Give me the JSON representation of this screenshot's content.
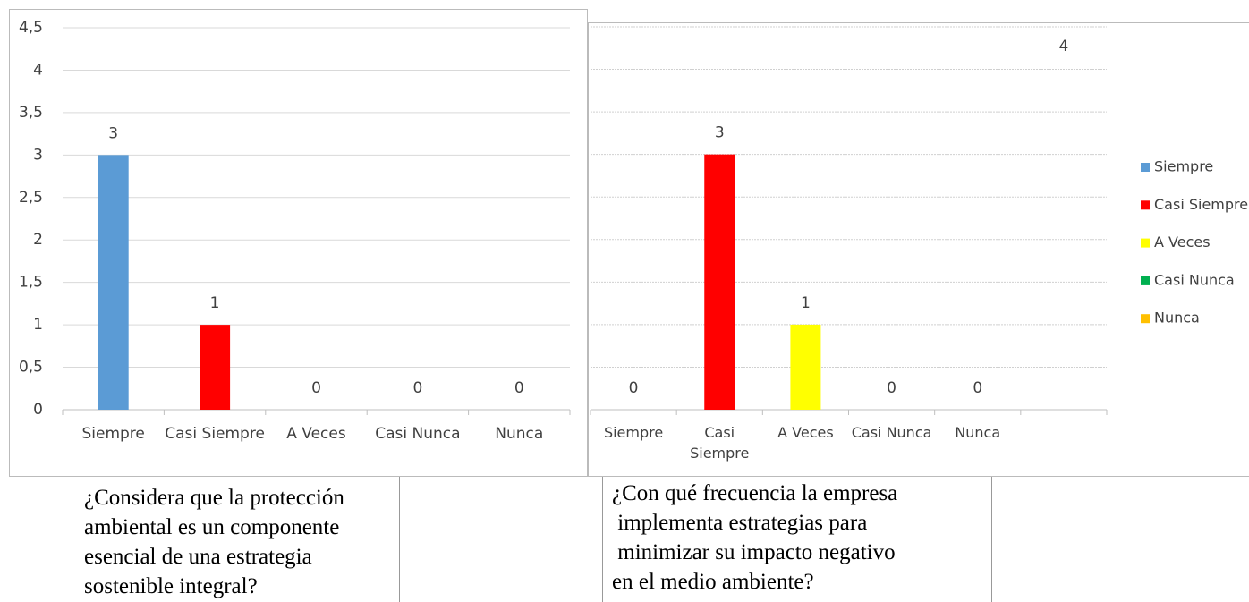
{
  "chart_data": [
    {
      "type": "bar",
      "categories": [
        "Siempre",
        "Casi Siempre",
        "A Veces",
        "Casi Nunca",
        "Nunca"
      ],
      "values": [
        3,
        1,
        0,
        0,
        0
      ],
      "colors": [
        "#5b9bd5",
        "#ff0000",
        "#ffff00",
        "#00b050",
        "#ffc000"
      ],
      "ylim": [
        0,
        4.5
      ],
      "yticks": [
        0,
        {
          "value": 0.5,
          "label": "0,5"
        },
        1,
        {
          "value": 1.5,
          "label": "1,5"
        },
        2,
        {
          "value": 2.5,
          "label": "2,5"
        },
        3,
        {
          "value": 3.5,
          "label": "3,5"
        },
        4,
        {
          "value": 4.5,
          "label": "4,5"
        }
      ],
      "grid": true,
      "caption": [
        "¿Considera que la protección",
        "ambiental es un componente",
        "esencial de una estrategia",
        "sostenible integral?"
      ]
    },
    {
      "type": "bar",
      "categories": [
        "Siempre",
        "Casi Siempre",
        "A Veces",
        "Casi Nunca",
        "Nunca",
        null
      ],
      "values": [
        0,
        3,
        1,
        0,
        0,
        null
      ],
      "colors": [
        "#5b9bd5",
        "#ff0000",
        "#ffff00",
        "#00b050",
        "#ffc000",
        null
      ],
      "ylim": [
        0,
        4.5
      ],
      "grid": true,
      "legend": "right",
      "annotation": "4",
      "caption": [
        "¿Con qué frecuencia la empresa",
        " implementa estrategias para",
        " minimizar su impacto negativo",
        "en el medio ambiente?"
      ]
    }
  ]
}
